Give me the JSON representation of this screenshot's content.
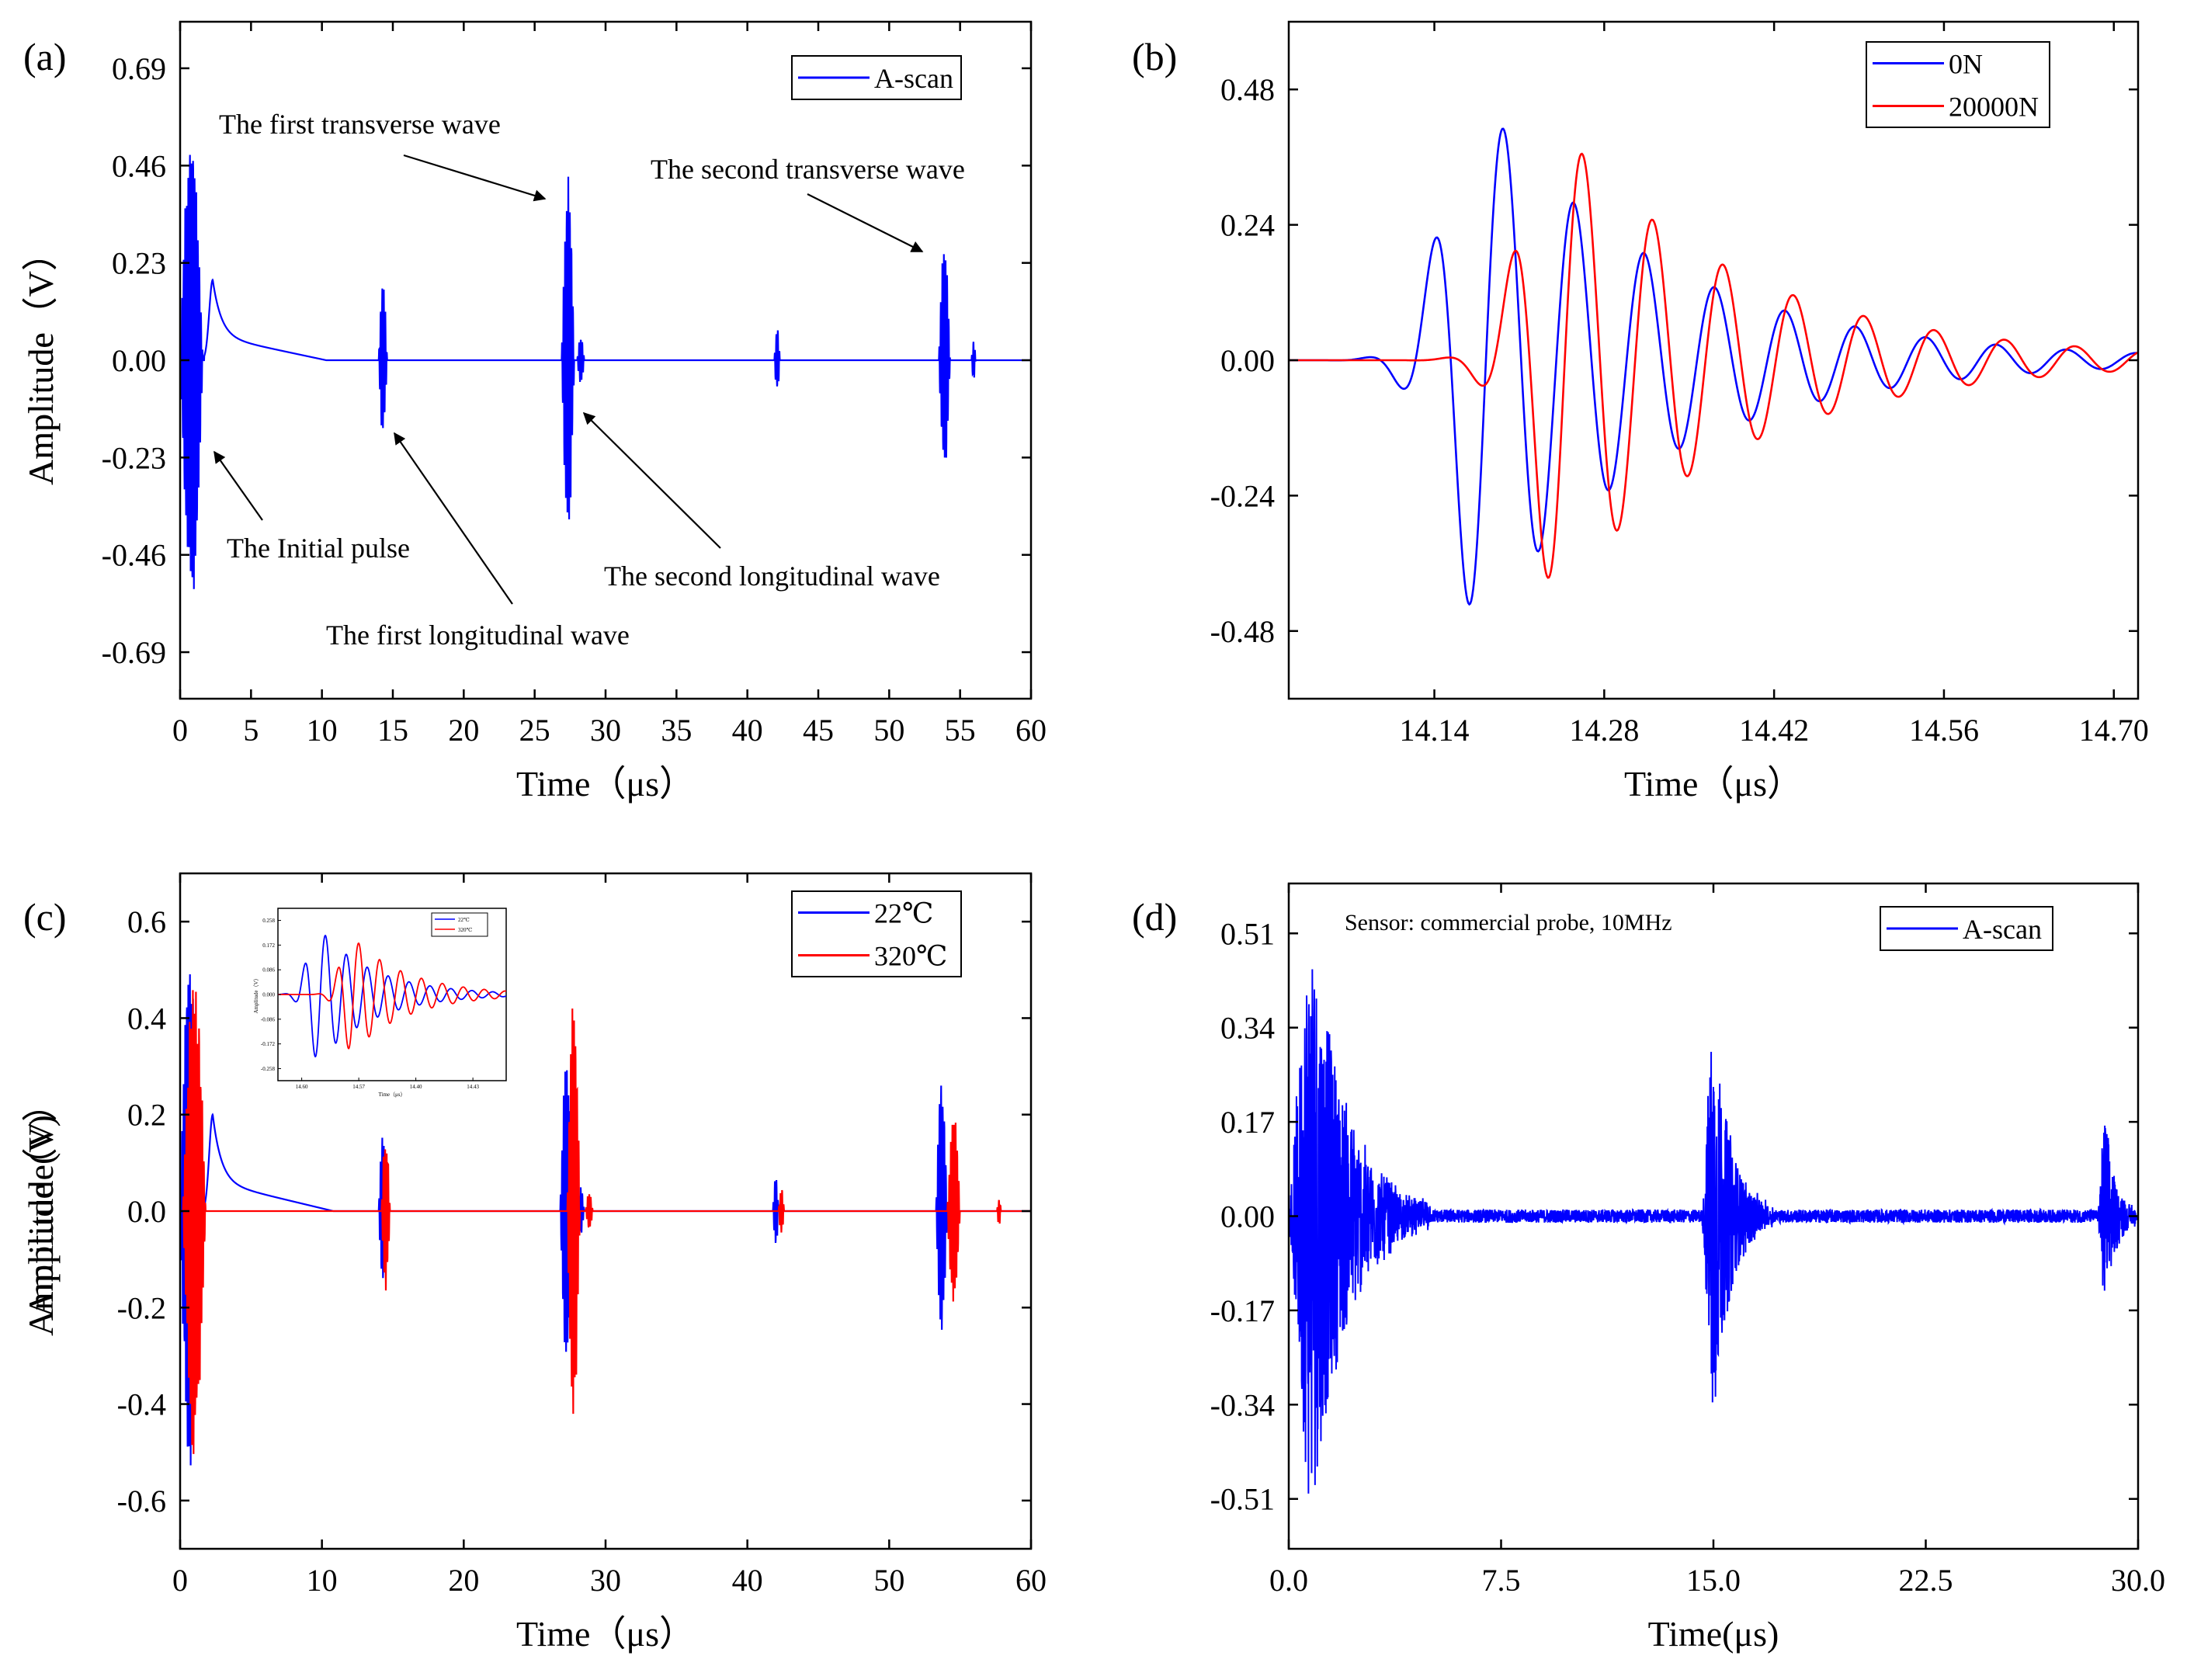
{
  "chart_data": [
    {
      "panel": "(a)",
      "type": "line",
      "xlabel": "Time（μs）",
      "ylabel": "Amplitude（V）",
      "xlim": [
        0,
        60
      ],
      "ylim": [
        -0.8,
        0.8
      ],
      "xticks": [
        "0",
        "5",
        "10",
        "15",
        "20",
        "25",
        "30",
        "35",
        "40",
        "45",
        "50",
        "55",
        "60"
      ],
      "yticks": [
        "0.69",
        "0.46",
        "0.23",
        "0.00",
        "-0.23",
        "-0.46",
        "-0.69"
      ],
      "grid": false,
      "legend_position": "top-right",
      "series": [
        {
          "name": "A-scan",
          "color": "#0000ff",
          "events": [
            {
              "t": 0.0,
              "dur": 1.6,
              "amp": 0.58,
              "kind": "burst"
            },
            {
              "t": 2.3,
              "dur": 8.0,
              "amp": 0.19,
              "kind": "decay"
            },
            {
              "t": 14.0,
              "dur": 0.6,
              "amp": 0.19,
              "kind": "burst"
            },
            {
              "t": 26.9,
              "dur": 0.9,
              "amp": 0.44,
              "kind": "burst"
            },
            {
              "t": 28.0,
              "dur": 0.5,
              "amp": 0.06,
              "kind": "burst"
            },
            {
              "t": 41.9,
              "dur": 0.4,
              "amp": 0.08,
              "kind": "burst"
            },
            {
              "t": 53.5,
              "dur": 0.8,
              "amp": 0.29,
              "kind": "burst"
            },
            {
              "t": 55.8,
              "dur": 0.3,
              "amp": 0.05,
              "kind": "burst"
            }
          ]
        }
      ],
      "annotations": [
        {
          "text": "The first transverse wave",
          "x": 27.0,
          "y": 0.38
        },
        {
          "text": "The second transverse wave",
          "x": 52.9,
          "y": 0.25
        },
        {
          "text": "The Initial pulse",
          "x": 2.4,
          "y": -0.22
        },
        {
          "text": "The first longitudinal wave",
          "x": 14.9,
          "y": -0.17
        },
        {
          "text": "The second longitudinal wave",
          "x": 28.5,
          "y": -0.14
        }
      ]
    },
    {
      "panel": "(b)",
      "type": "line",
      "xlabel": "Time（μs）",
      "ylabel": "Amplitude（V）",
      "xlim": [
        14.02,
        14.72
      ],
      "ylim": [
        -0.6,
        0.6
      ],
      "xticks": [
        "14.14",
        "14.28",
        "14.42",
        "14.56",
        "14.70"
      ],
      "yticks": [
        "0.48",
        "0.24",
        "0.00",
        "-0.24",
        "-0.48"
      ],
      "grid": false,
      "legend_position": "top-right",
      "series": [
        {
          "name": "0N",
          "color": "#0000ff",
          "t0": 14.11,
          "peak": 0.46,
          "period": 0.058
        },
        {
          "name": "20000N",
          "color": "#ff0000",
          "t0": 14.175,
          "peak": 0.41,
          "period": 0.058
        }
      ]
    },
    {
      "panel": "(c)",
      "type": "line",
      "xlabel": "Time（μs）",
      "ylabel": "Amplitude（V）",
      "xlim": [
        0,
        60
      ],
      "ylim": [
        -0.7,
        0.7
      ],
      "xticks": [
        "0",
        "10",
        "20",
        "30",
        "40",
        "50",
        "60"
      ],
      "yticks": [
        "0.6",
        "0.4",
        "0.2",
        "0.0",
        "-0.2",
        "-0.4",
        "-0.6"
      ],
      "grid": false,
      "legend_position": "top-right",
      "series": [
        {
          "name": "22℃",
          "color": "#0000ff",
          "events": [
            {
              "t": 0.0,
              "dur": 1.4,
              "amp": 0.57,
              "kind": "burst"
            },
            {
              "t": 2.3,
              "dur": 8.5,
              "amp": 0.2,
              "kind": "decay"
            },
            {
              "t": 14.0,
              "dur": 0.6,
              "amp": 0.17,
              "kind": "burst"
            },
            {
              "t": 26.8,
              "dur": 0.9,
              "amp": 0.32,
              "kind": "burst"
            },
            {
              "t": 28.0,
              "dur": 0.5,
              "amp": 0.05,
              "kind": "burst"
            },
            {
              "t": 41.8,
              "dur": 0.4,
              "amp": 0.08,
              "kind": "burst"
            },
            {
              "t": 53.3,
              "dur": 0.8,
              "amp": 0.29,
              "kind": "burst"
            }
          ]
        },
        {
          "name": "320℃",
          "color": "#ff0000",
          "events": [
            {
              "t": 0.2,
              "dur": 1.6,
              "amp": 0.52,
              "kind": "burst"
            },
            {
              "t": 14.2,
              "dur": 0.6,
              "amp": 0.17,
              "kind": "burst"
            },
            {
              "t": 27.3,
              "dur": 0.9,
              "amp": 0.45,
              "kind": "burst"
            },
            {
              "t": 28.6,
              "dur": 0.5,
              "amp": 0.04,
              "kind": "burst"
            },
            {
              "t": 42.2,
              "dur": 0.4,
              "amp": 0.05,
              "kind": "burst"
            },
            {
              "t": 54.1,
              "dur": 0.9,
              "amp": 0.21,
              "kind": "burst"
            },
            {
              "t": 57.6,
              "dur": 0.3,
              "amp": 0.03,
              "kind": "burst"
            }
          ]
        }
      ],
      "inset": {
        "xlim": [
          14.6,
          14.84
        ],
        "ylim": [
          -0.3,
          0.3
        ],
        "xticks": [
          "14.60",
          "14.57",
          "14.40",
          "14.43"
        ],
        "yticks": [
          "0.258",
          "0.172",
          "0.086",
          "0.000",
          "-0.086",
          "-0.172",
          "-0.258"
        ],
        "xlabel": "Time（μs）",
        "ylabel": "Amplitude（V）",
        "series": [
          {
            "name": "22℃",
            "color": "#0000ff",
            "t0": 14.617,
            "peak": 0.23,
            "period": 0.022
          },
          {
            "name": "320℃",
            "color": "#ff0000",
            "t0": 14.652,
            "peak": 0.2,
            "period": 0.022
          }
        ]
      }
    },
    {
      "panel": "(d)",
      "type": "line",
      "xlabel": "Time(μs)",
      "ylabel": "Amplitude(V)",
      "xlim": [
        0,
        30
      ],
      "ylim": [
        -0.6,
        0.6
      ],
      "xticks": [
        "0.0",
        "7.5",
        "15.0",
        "22.5",
        "30.0"
      ],
      "yticks": [
        "0.51",
        "0.34",
        "0.17",
        "0.00",
        "-0.17",
        "-0.34",
        "-0.51"
      ],
      "grid": false,
      "legend_position": "top-right",
      "annotation": "Sensor: commercial probe, 10MHz",
      "series": [
        {
          "name": "A-scan",
          "color": "#0000ff",
          "noise": 0.012,
          "events": [
            {
              "t": 0.0,
              "dur": 5.0,
              "amp": 0.57,
              "kind": "ring"
            },
            {
              "t": 14.6,
              "dur": 2.5,
              "amp": 0.39,
              "kind": "ring"
            },
            {
              "t": 28.6,
              "dur": 1.4,
              "amp": 0.2,
              "kind": "ring"
            }
          ]
        }
      ]
    }
  ]
}
